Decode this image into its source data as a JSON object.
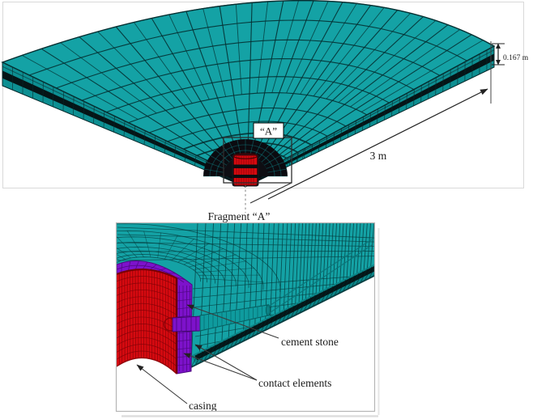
{
  "overview": {
    "thickness_label": "0.167 m",
    "radius_label": "3 m",
    "fragment_marker_label": "“A”"
  },
  "fragment": {
    "caption": "Fragment “A”",
    "labels": {
      "cement_stone": "cement stone",
      "contact_elements": "contact elements",
      "casing": "casing"
    }
  },
  "colors": {
    "mesh_teal": "#14a2a5",
    "mesh_teal_dark": "#0d8f92",
    "mesh_line": "#06393c",
    "interlayer_black": "#051517",
    "casing_red": "#d60a10",
    "casing_red_line": "#7e0207",
    "cement_purple": "#7d12cb",
    "cement_purple_dark": "#4d0780",
    "annotation": "#2a2a2a"
  }
}
